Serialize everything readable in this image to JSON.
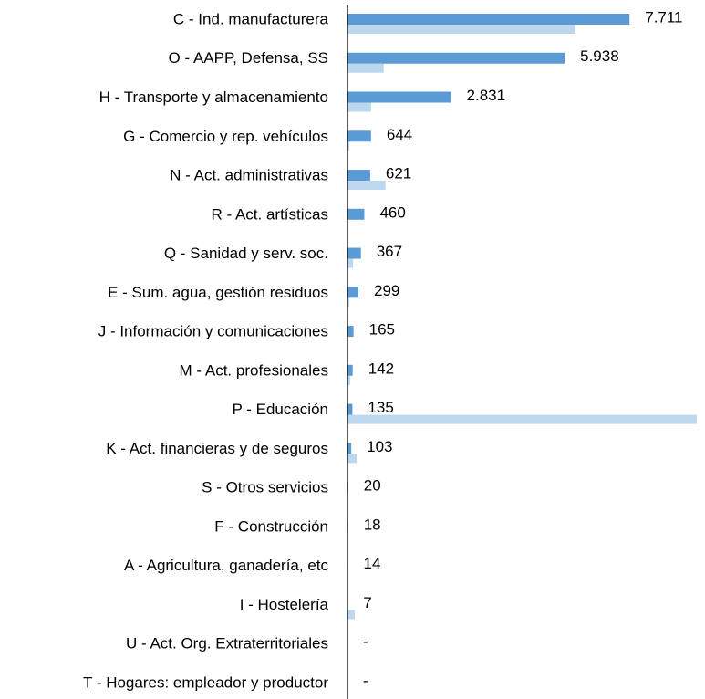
{
  "chart_data": {
    "type": "bar",
    "orientation": "horizontal",
    "categories": [
      "C - Ind. manufacturera",
      "O - AAPP, Defensa, SS",
      "H - Transporte y almacenamiento",
      "G - Comercio y rep. vehículos",
      "N - Act. administrativas",
      "R - Act. artísticas",
      "Q - Sanidad y serv. soc.",
      "E - Sum. agua, gestión residuos",
      "J - Información y comunicaciones",
      "M - Act. profesionales",
      "P - Educación",
      "K - Act. financieras y de seguros",
      "S - Otros servicios",
      "F - Construcción",
      "A - Agricultura, ganadería, etc",
      "I - Hostelería",
      "U - Act. Org. Extraterritoriales",
      "T - Hogares: empleador y productor"
    ],
    "series": [
      {
        "color": "#5b9bd5",
        "values": [
          7711,
          5938,
          2831,
          644,
          621,
          460,
          367,
          299,
          165,
          142,
          135,
          103,
          20,
          18,
          14,
          7,
          0,
          0
        ],
        "value_labels": [
          "7.711",
          "5.938",
          "2.831",
          "644",
          "621",
          "460",
          "367",
          "299",
          "165",
          "142",
          "135",
          "103",
          "20",
          "18",
          "14",
          "7",
          "-",
          "-"
        ]
      },
      {
        "color": "#bdd7ee",
        "values": [
          6225,
          990,
          645,
          50,
          1040,
          0,
          150,
          50,
          0,
          75,
          9550,
          250,
          0,
          0,
          0,
          200,
          0,
          0
        ]
      }
    ],
    "xlim": [
      0,
      9600
    ]
  }
}
